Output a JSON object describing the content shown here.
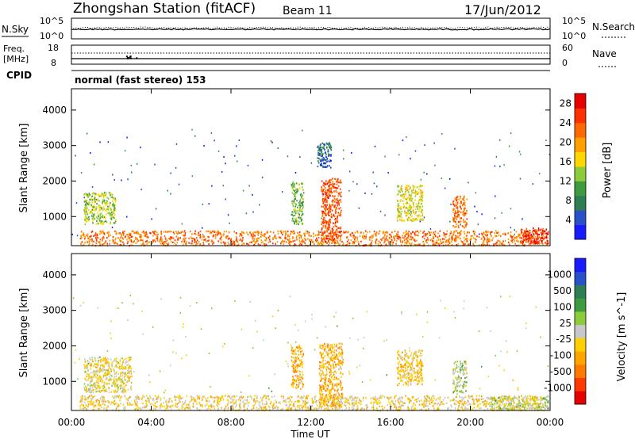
{
  "header": {
    "title": "Zhongshan Station (fitACF)",
    "beam": "Beam 11",
    "date": "17/Jun/2012"
  },
  "sky_panel": {
    "left_label": "N.Sky",
    "left_ticks": [
      "10^5",
      "10^0"
    ],
    "right_ticks": [
      "10^5",
      "10^0"
    ],
    "right_label": "N.Search"
  },
  "freq_panel": {
    "left_label_1": "Freq.",
    "left_label_2": "[MHz]",
    "left_ticks": [
      "18",
      "8"
    ],
    "right_ticks": [
      "60",
      "0"
    ],
    "right_label": "Nave"
  },
  "cpid": {
    "label": "CPID",
    "text": "normal (fast stereo) 153"
  },
  "xaxis": {
    "ticks": [
      "00:00",
      "04:00",
      "08:00",
      "12:00",
      "16:00",
      "20:00",
      "00:00"
    ],
    "label": "Time UT"
  },
  "colors": {
    "power": [
      "#1a1aff",
      "#2850c8",
      "#2e7d55",
      "#3f9b3f",
      "#8ccc3a",
      "#ffd700",
      "#ff9f00",
      "#ff6a00",
      "#ff3000",
      "#e60000"
    ],
    "velocity": [
      "#e60000",
      "#ff3a00",
      "#ff7b00",
      "#ffa500",
      "#ffd000",
      "#c8c8c8",
      "#8ccc3a",
      "#3f9b3f",
      "#2e7d55",
      "#2850c8",
      "#1a1aff"
    ]
  },
  "chart_data": [
    {
      "type": "heatmap",
      "ylabel": "Slant Range [km]",
      "ylim": [
        180,
        4600
      ],
      "yticks": [
        1000,
        2000,
        3000,
        4000
      ],
      "xlim": [
        0,
        24
      ],
      "colorbar_label": "Power [dB]",
      "colorbar_ticks": [
        4,
        8,
        12,
        16,
        20,
        24,
        28
      ],
      "colorbar_range": [
        0,
        30
      ],
      "scatter_patches": [
        {
          "t": [
            0.4,
            23.9
          ],
          "r": [
            200,
            620
          ],
          "level": 22
        },
        {
          "t": [
            0.6,
            2.2
          ],
          "r": [
            800,
            1700
          ],
          "level": 14
        },
        {
          "t": [
            11.0,
            11.6
          ],
          "r": [
            800,
            2000
          ],
          "level": 12
        },
        {
          "t": [
            12.5,
            13.5
          ],
          "r": [
            300,
            2100
          ],
          "level": 24
        },
        {
          "t": [
            12.3,
            13.0
          ],
          "r": [
            2400,
            3100
          ],
          "level": 6
        },
        {
          "t": [
            16.3,
            17.6
          ],
          "r": [
            900,
            1900
          ],
          "level": 16
        },
        {
          "t": [
            19.1,
            19.8
          ],
          "r": [
            700,
            1600
          ],
          "level": 22
        },
        {
          "t": [
            22.5,
            23.9
          ],
          "r": [
            250,
            700
          ],
          "level": 26
        }
      ]
    },
    {
      "type": "heatmap",
      "ylabel": "Slant Range [km]",
      "ylim": [
        180,
        4600
      ],
      "yticks": [
        1000,
        2000,
        3000,
        4000
      ],
      "xlim": [
        0,
        24
      ],
      "colorbar_label": "Velocity [m s^-1]",
      "colorbar_ticks": [
        1000,
        500,
        100,
        25,
        -25,
        -100,
        -500,
        -1000
      ],
      "colorbar_range": [
        -1000,
        1000
      ],
      "scatter_patches": [
        {
          "t": [
            0.4,
            23.9
          ],
          "r": [
            200,
            620
          ],
          "level": -150
        },
        {
          "t": [
            0.6,
            3.0
          ],
          "r": [
            700,
            1700
          ],
          "level": -100
        },
        {
          "t": [
            11.0,
            11.6
          ],
          "r": [
            800,
            2000
          ],
          "level": -300
        },
        {
          "t": [
            12.4,
            13.6
          ],
          "r": [
            300,
            2100
          ],
          "level": -300
        },
        {
          "t": [
            16.3,
            17.6
          ],
          "r": [
            900,
            1900
          ],
          "level": -200
        },
        {
          "t": [
            19.1,
            19.8
          ],
          "r": [
            700,
            1600
          ],
          "level": 80
        },
        {
          "t": [
            21.0,
            23.9
          ],
          "r": [
            200,
            600
          ],
          "level": 50
        }
      ]
    }
  ]
}
